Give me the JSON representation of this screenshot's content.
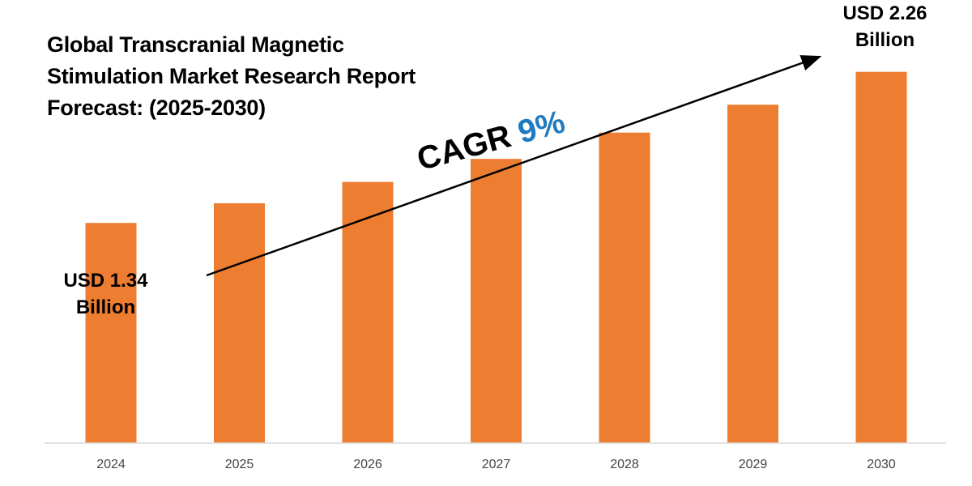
{
  "title": {
    "line1": "Global Transcranial Magnetic",
    "line2": "Stimulation Market Research Report",
    "line3": "Forecast: (2025-2030)"
  },
  "callouts": {
    "start": {
      "line1": "USD 1.34",
      "line2": "Billion"
    },
    "end": {
      "line1": "USD 2.26",
      "line2": "Billion"
    }
  },
  "cagr": {
    "label": "CAGR",
    "value": "9%"
  },
  "colors": {
    "bar": "#ed7d31",
    "accent": "#1f7bc0",
    "axis": "#d9d9d9",
    "tick": "#444444"
  },
  "chart_data": {
    "type": "bar",
    "title": "Global Transcranial Magnetic Stimulation Market Research Report Forecast: (2025-2030)",
    "categories": [
      "2024",
      "2025",
      "2026",
      "2027",
      "2028",
      "2029",
      "2030"
    ],
    "values": [
      1.34,
      1.46,
      1.59,
      1.73,
      1.89,
      2.06,
      2.26
    ],
    "unit": "USD Billion",
    "ylim": [
      0,
      2.5
    ],
    "xlabel": "",
    "ylabel": "",
    "grid": false,
    "legend": "none",
    "annotations": [
      "USD 1.34 Billion",
      "USD 2.26 Billion",
      "CAGR 9%"
    ]
  }
}
